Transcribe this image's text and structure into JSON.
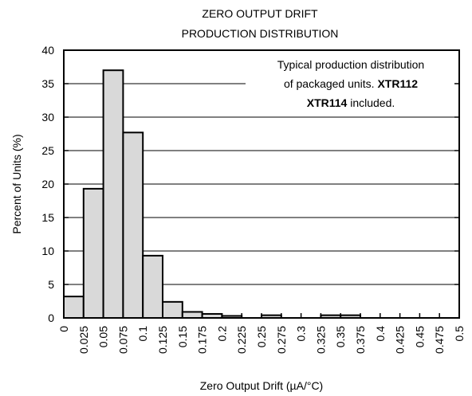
{
  "chart_data": {
    "type": "bar",
    "title_lines": [
      "ZERO OUTPUT DRIFT",
      "PRODUCTION DISTRIBUTION"
    ],
    "xlabel": "Zero Output Drift (µA/°C)",
    "ylabel": "Percent of Units (%)",
    "xlim": [
      0,
      0.5
    ],
    "ylim": [
      0,
      40
    ],
    "bin_width": 0.025,
    "x_ticks": [
      "0",
      "0.025",
      "0.05",
      "0.075",
      "0.1",
      "0.125",
      "0.15",
      "0.175",
      "0.2",
      "0.225",
      "0.25",
      "0.275",
      "0.3",
      "0.325",
      "0.35",
      "0.375",
      "0.4",
      "0.425",
      "0.45",
      "0.475",
      "0.5"
    ],
    "y_ticks": [
      "0",
      "5",
      "10",
      "15",
      "20",
      "25",
      "30",
      "35",
      "40"
    ],
    "bins": [
      {
        "start": 0,
        "value": 3.2
      },
      {
        "start": 0.025,
        "value": 19.3
      },
      {
        "start": 0.05,
        "value": 37.0
      },
      {
        "start": 0.075,
        "value": 27.7
      },
      {
        "start": 0.1,
        "value": 9.3
      },
      {
        "start": 0.125,
        "value": 2.4
      },
      {
        "start": 0.15,
        "value": 0.9
      },
      {
        "start": 0.175,
        "value": 0.6
      },
      {
        "start": 0.2,
        "value": 0.3
      },
      {
        "start": 0.225,
        "value": 0
      },
      {
        "start": 0.25,
        "value": 0.4
      },
      {
        "start": 0.275,
        "value": 0
      },
      {
        "start": 0.3,
        "value": 0
      },
      {
        "start": 0.325,
        "value": 0.4
      },
      {
        "start": 0.35,
        "value": 0.4
      },
      {
        "start": 0.375,
        "value": 0
      },
      {
        "start": 0.4,
        "value": 0
      },
      {
        "start": 0.425,
        "value": 0
      },
      {
        "start": 0.45,
        "value": 0
      },
      {
        "start": 0.475,
        "value": 0
      }
    ],
    "grid": "horizontal",
    "bar_color": "#d9d9d9",
    "annotation": {
      "placement": "top-right",
      "line1": "Typical production distribution",
      "line2_text": "of packaged units. ",
      "line2_bold": "XTR112",
      "line3_bold": "XTR114",
      "line3_text": " included."
    }
  }
}
